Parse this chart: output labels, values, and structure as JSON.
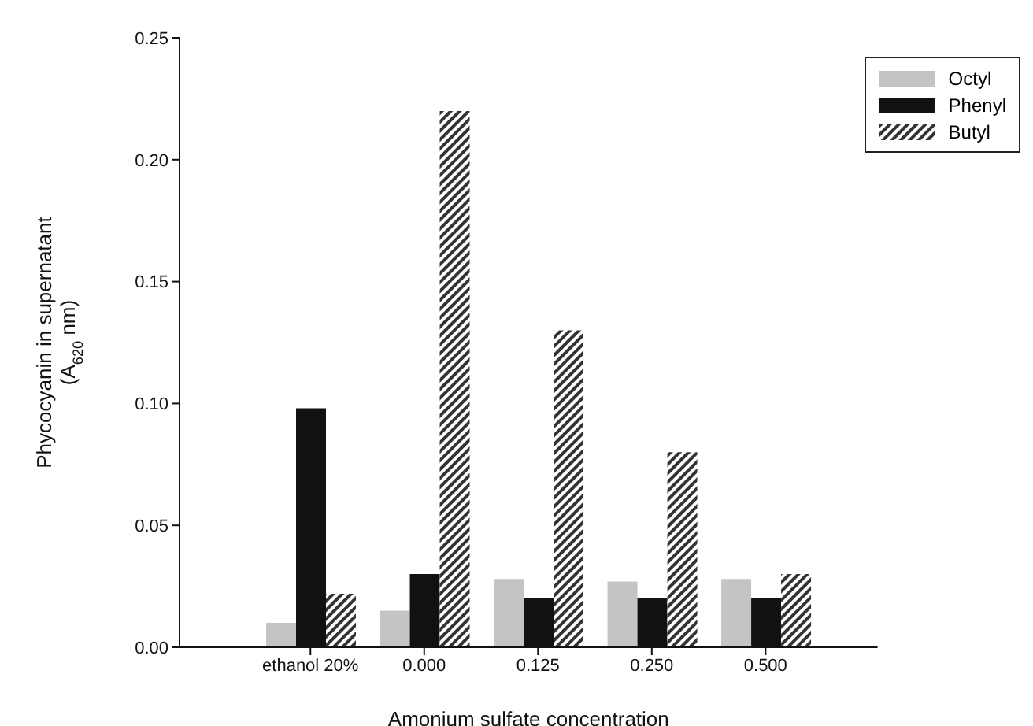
{
  "chart_data": {
    "type": "bar",
    "xlabel": "Amonium sulfate concentration",
    "ylabel": "Phycocyanin in supernatant\n(A$_{620}$ nm)",
    "categories": [
      "ethanol 20%",
      "0.000",
      "0.125",
      "0.250",
      "0.500"
    ],
    "series": [
      {
        "name": "Octyl",
        "color": "#c4c4c4",
        "values": [
          0.01,
          0.015,
          0.028,
          0.027,
          0.028
        ]
      },
      {
        "name": "Phenyl",
        "color": "#111111",
        "values": [
          0.098,
          0.03,
          0.02,
          0.02,
          0.02
        ]
      },
      {
        "name": "Butyl",
        "color": "#333333",
        "values": [
          0.022,
          0.22,
          0.13,
          0.08,
          0.03
        ]
      }
    ],
    "ylim": [
      0,
      0.25
    ],
    "yticks": [
      {
        "value": 0,
        "label": "0.00"
      },
      {
        "value": 0.05,
        "label": "0.05"
      },
      {
        "value": 0.1,
        "label": "0.10"
      },
      {
        "value": 0.15,
        "label": "0.15"
      },
      {
        "value": 0.2,
        "label": "0.20"
      },
      {
        "value": 0.25,
        "label": "0.25"
      }
    ],
    "grid": false,
    "legend": "top right"
  }
}
